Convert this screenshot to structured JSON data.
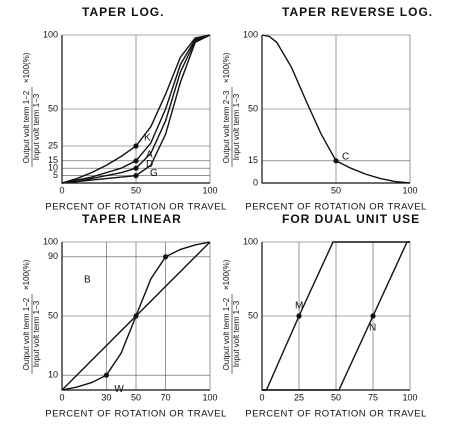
{
  "chart_data": [
    {
      "type": "line",
      "title": "TAPER LOG.",
      "xlabel": "PERCENT OF ROTATION OR TRAVEL",
      "ylabel_numerator": "Output volt term 1−2",
      "ylabel_denominator": "Input volt term 1−3",
      "ylabel_unit": "×100(%)",
      "x": [
        0,
        10,
        20,
        30,
        40,
        50,
        60,
        70,
        80,
        90,
        100
      ],
      "xlim": [
        0,
        100
      ],
      "xticks": [
        0,
        50,
        100
      ],
      "ylim": [
        0,
        100
      ],
      "yticks": [
        5,
        10,
        15,
        25,
        50,
        100
      ],
      "grid": true,
      "series": [
        {
          "name": "K",
          "color": "#111",
          "values": [
            0,
            3,
            7,
            12,
            18,
            25,
            38,
            60,
            85,
            98,
            100
          ],
          "points": [
            {
              "x": 50,
              "y": 25
            }
          ]
        },
        {
          "name": "A",
          "color": "#111",
          "values": [
            0,
            2,
            4,
            7,
            10,
            15,
            27,
            50,
            80,
            97,
            100
          ],
          "points": [
            {
              "x": 50,
              "y": 15
            }
          ]
        },
        {
          "name": "D",
          "color": "#111",
          "values": [
            0,
            1,
            3,
            5,
            7,
            10,
            20,
            42,
            75,
            96,
            100
          ],
          "points": [
            {
              "x": 50,
              "y": 10
            }
          ]
        },
        {
          "name": "G",
          "color": "#111",
          "values": [
            0,
            1,
            2,
            3,
            4,
            5,
            12,
            33,
            68,
            95,
            100
          ],
          "points": [
            {
              "x": 50,
              "y": 5
            }
          ]
        }
      ]
    },
    {
      "type": "line",
      "title": "TAPER REVERSE LOG.",
      "xlabel": "PERCENT OF ROTATION OR TRAVEL",
      "ylabel_numerator": "Output volt term 2−3",
      "ylabel_denominator": "Input volt term 1−3",
      "ylabel_unit": "×100(%)",
      "x": [
        0,
        5,
        10,
        20,
        30,
        40,
        50,
        60,
        70,
        80,
        90,
        100
      ],
      "xlim": [
        0,
        100
      ],
      "xticks": [
        50,
        100
      ],
      "ylim": [
        0,
        100
      ],
      "yticks": [
        0,
        15,
        50,
        100
      ],
      "grid": true,
      "series": [
        {
          "name": "C",
          "color": "#111",
          "values": [
            100,
            99,
            95,
            78,
            55,
            33,
            15,
            10,
            6,
            3,
            1,
            0
          ],
          "points": [
            {
              "x": 50,
              "y": 15
            }
          ]
        }
      ]
    },
    {
      "type": "line",
      "title": "TAPER LINEAR",
      "xlabel": "PERCENT OF ROTATION OR TRAVEL",
      "ylabel_numerator": "Output volt term 1−2",
      "ylabel_denominator": "Input volt term 1−3",
      "ylabel_unit": "×100(%)",
      "x": [
        0,
        10,
        20,
        30,
        40,
        50,
        60,
        70,
        80,
        90,
        100
      ],
      "xlim": [
        0,
        100
      ],
      "xticks": [
        0,
        30,
        50,
        70,
        100
      ],
      "ylim": [
        0,
        100
      ],
      "yticks": [
        10,
        50,
        90,
        100
      ],
      "grid": true,
      "series": [
        {
          "name": "B",
          "color": "#111",
          "values": [
            0,
            10,
            20,
            30,
            40,
            50,
            60,
            70,
            80,
            90,
            100
          ],
          "points": [
            {
              "x": 50,
              "y": 50
            }
          ]
        },
        {
          "name": "W",
          "color": "#111",
          "values": [
            0,
            2,
            5,
            10,
            25,
            50,
            75,
            90,
            95,
            98,
            100
          ],
          "points": [
            {
              "x": 30,
              "y": 10
            },
            {
              "x": 70,
              "y": 90
            }
          ]
        }
      ]
    },
    {
      "type": "line",
      "title": "FOR DUAL UNIT USE",
      "xlabel": "PERCENT OF ROTATION OR TRAVEL",
      "ylabel_numerator": "Output volt term 1−2",
      "ylabel_denominator": "Input volt term 1−3",
      "ylabel_unit": "×100(%)",
      "xlim": [
        0,
        100
      ],
      "xticks": [
        0,
        25,
        50,
        75,
        100
      ],
      "ylim": [
        0,
        100
      ],
      "yticks": [
        50,
        100
      ],
      "grid": true,
      "series": [
        {
          "name": "M",
          "color": "#111",
          "x": [
            0,
            3,
            25,
            48,
            100
          ],
          "values": [
            0,
            0,
            50,
            100,
            100
          ],
          "points": [
            {
              "x": 25,
              "y": 50
            }
          ]
        },
        {
          "name": "N",
          "color": "#111",
          "x": [
            0,
            52,
            75,
            98,
            100
          ],
          "values": [
            0,
            0,
            50,
            100,
            100
          ],
          "points": [
            {
              "x": 75,
              "y": 50
            }
          ]
        }
      ]
    }
  ]
}
